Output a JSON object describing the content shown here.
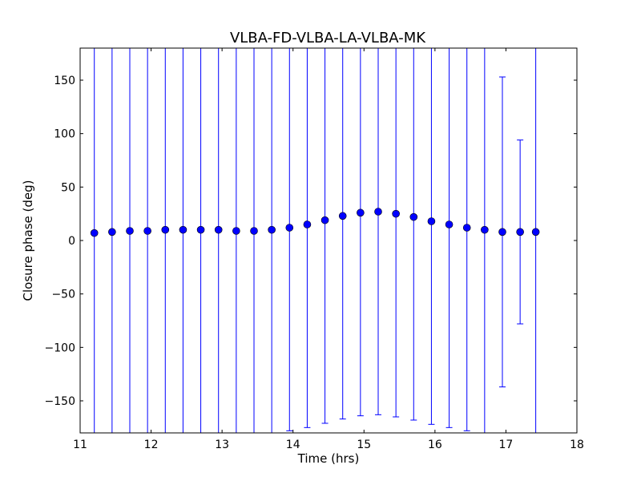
{
  "chart_data": {
    "type": "scatter",
    "title": "VLBA-FD-VLBA-LA-VLBA-MK",
    "xlabel": "Time (hrs)",
    "ylabel": "Closure phase (deg)",
    "xlim": [
      11,
      18
    ],
    "ylim": [
      -180,
      180
    ],
    "xticks": [
      11,
      12,
      13,
      14,
      15,
      16,
      17,
      18
    ],
    "yticks": [
      -150,
      -100,
      -50,
      0,
      50,
      100,
      150
    ],
    "xtick_labels": [
      "11",
      "12",
      "13",
      "14",
      "15",
      "16",
      "17",
      "18"
    ],
    "ytick_labels": [
      "−150",
      "−100",
      "−50",
      "0",
      "50",
      "100",
      "150"
    ],
    "grid": false,
    "marker_color": "#0000ff",
    "errorbar_color": "#0000ff",
    "series": [
      {
        "x": [
          11.2,
          11.45,
          11.7,
          11.95,
          12.2,
          12.45,
          12.7,
          12.95,
          13.2,
          13.45,
          13.7,
          13.95,
          14.2,
          14.45,
          14.7,
          14.95,
          15.2,
          15.45,
          15.7,
          15.95,
          16.2,
          16.45,
          16.7,
          16.95,
          17.2,
          17.42
        ],
        "y": [
          7,
          8,
          9,
          9,
          10,
          10,
          10,
          10,
          9,
          9,
          10,
          12,
          15,
          19,
          23,
          26,
          27,
          25,
          22,
          18,
          15,
          12,
          10,
          8,
          8,
          8
        ],
        "yerr_low": [
          190,
          190,
          190,
          190,
          190,
          190,
          190,
          190,
          190,
          190,
          190,
          190,
          190,
          190,
          190,
          190,
          190,
          190,
          190,
          190,
          190,
          190,
          190,
          145,
          86,
          190
        ],
        "yerr_high": [
          190,
          190,
          190,
          190,
          190,
          190,
          190,
          190,
          190,
          190,
          190,
          190,
          190,
          190,
          190,
          190,
          190,
          190,
          190,
          190,
          190,
          190,
          190,
          145,
          86,
          190
        ]
      }
    ]
  }
}
